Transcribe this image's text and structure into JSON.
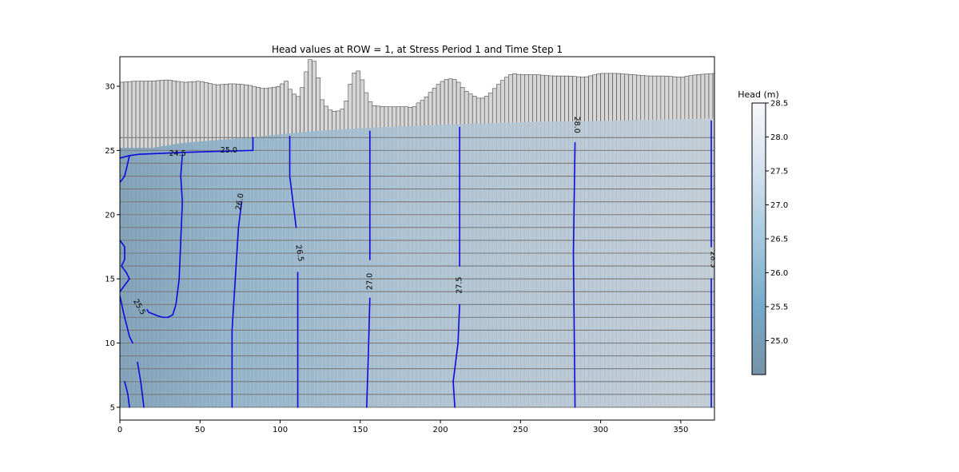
{
  "chart_data": {
    "type": "cross-section-contour",
    "title": "Head values at ROW = 1, at Stress Period 1 and Time Step 1",
    "xlabel": "",
    "ylabel": "",
    "xlim": [
      0,
      371
    ],
    "ylim": [
      4.0,
      32.3
    ],
    "x_ticks": [
      0,
      50,
      100,
      150,
      200,
      250,
      300,
      350
    ],
    "y_ticks": [
      5,
      10,
      15,
      20,
      25,
      30
    ],
    "grid": false,
    "colorbar": {
      "title": "Head (m)",
      "range": [
        24.5,
        28.5
      ],
      "ticks": [
        25.0,
        25.5,
        26.0,
        26.5,
        27.0,
        27.5,
        28.0,
        28.5
      ],
      "colormap": [
        "#7693a7",
        "#76a9c9",
        "#a4c9df",
        "#d5e1ee",
        "#f7f7fb"
      ]
    },
    "model_grid": {
      "column_width": 2.5,
      "layer_bottoms": [
        5,
        6,
        7,
        8,
        9,
        10,
        11,
        12,
        13,
        14,
        15,
        16,
        17,
        18,
        19,
        20,
        21,
        22,
        23,
        24,
        25,
        26
      ],
      "top_surface": [
        [
          0,
          30.3
        ],
        [
          10,
          30.4
        ],
        [
          20,
          30.4
        ],
        [
          30,
          30.5
        ],
        [
          40,
          30.3
        ],
        [
          50,
          30.4
        ],
        [
          60,
          30.1
        ],
        [
          70,
          30.2
        ],
        [
          80,
          30.1
        ],
        [
          90,
          29.8
        ],
        [
          95,
          29.9
        ],
        [
          100,
          30.0
        ],
        [
          102,
          30.3
        ],
        [
          103,
          30.6
        ],
        [
          106,
          29.8
        ],
        [
          110,
          29.2
        ],
        [
          112,
          29.2
        ],
        [
          114,
          30.0
        ],
        [
          116,
          31.0
        ],
        [
          118,
          32.0
        ],
        [
          120,
          32.2
        ],
        [
          122,
          31.8
        ],
        [
          124,
          30.5
        ],
        [
          126,
          29.0
        ],
        [
          130,
          28.2
        ],
        [
          135,
          28.0
        ],
        [
          140,
          28.3
        ],
        [
          142,
          29.2
        ],
        [
          144,
          30.3
        ],
        [
          146,
          31.0
        ],
        [
          148,
          31.3
        ],
        [
          150,
          31.0
        ],
        [
          152,
          30.2
        ],
        [
          155,
          29.0
        ],
        [
          158,
          28.5
        ],
        [
          165,
          28.4
        ],
        [
          180,
          28.4
        ],
        [
          183,
          28.3
        ],
        [
          185,
          28.6
        ],
        [
          190,
          29.0
        ],
        [
          195,
          29.7
        ],
        [
          200,
          30.3
        ],
        [
          205,
          30.6
        ],
        [
          210,
          30.5
        ],
        [
          212,
          30.2
        ],
        [
          215,
          29.7
        ],
        [
          220,
          29.3
        ],
        [
          225,
          29.0
        ],
        [
          230,
          29.3
        ],
        [
          235,
          30.0
        ],
        [
          240,
          30.6
        ],
        [
          245,
          31.0
        ],
        [
          250,
          30.9
        ],
        [
          260,
          30.9
        ],
        [
          270,
          30.8
        ],
        [
          280,
          30.8
        ],
        [
          290,
          30.7
        ],
        [
          300,
          31.0
        ],
        [
          310,
          31.0
        ],
        [
          320,
          30.9
        ],
        [
          330,
          30.8
        ],
        [
          340,
          30.8
        ],
        [
          350,
          30.7
        ],
        [
          360,
          30.9
        ],
        [
          371,
          31.0
        ]
      ]
    },
    "water_table": [
      [
        0,
        25.2
      ],
      [
        20,
        25.2
      ],
      [
        40,
        25.6
      ],
      [
        80,
        26.0
      ],
      [
        120,
        26.5
      ],
      [
        160,
        26.8
      ],
      [
        200,
        27.0
      ],
      [
        250,
        27.2
      ],
      [
        300,
        27.3
      ],
      [
        371,
        27.5
      ]
    ],
    "contours": [
      {
        "level": "24.5",
        "label": "24.5",
        "label_xy": [
          36,
          24.75
        ],
        "label_rot": 0,
        "paths": [
          [
            [
              0,
              24.4
            ],
            [
              6,
              24.6
            ],
            [
              12,
              24.7
            ],
            [
              40,
              24.85
            ],
            [
              82,
              25.0
            ]
          ],
          [
            [
              0,
              22.5
            ],
            [
              3,
              23.0
            ],
            [
              6,
              24.6
            ]
          ]
        ]
      },
      {
        "level": "25.0",
        "label": "25.0",
        "label_xy": [
          68,
          25.0
        ],
        "label_rot": 0,
        "paths": [
          [
            [
              82,
              25.0
            ],
            [
              83,
              25.0
            ],
            [
              83,
              26.0
            ]
          ],
          [
            [
              39,
              24.7
            ],
            [
              38,
              23.0
            ],
            [
              39,
              21.0
            ],
            [
              38,
              18.0
            ],
            [
              37,
              15.0
            ],
            [
              35,
              13.0
            ],
            [
              33,
              12.2
            ],
            [
              30,
              12.0
            ],
            [
              27,
              12.0
            ],
            [
              24,
              12.1
            ],
            [
              18,
              12.4
            ],
            [
              17,
              12.6
            ]
          ]
        ]
      },
      {
        "level": "25.5",
        "label": "25.5",
        "label_xy": [
          12,
          12.8
        ],
        "label_rot": 60,
        "paths": [
          [
            [
              0,
              18.0
            ],
            [
              3,
              17.5
            ],
            [
              3,
              16.5
            ],
            [
              1,
              16.0
            ],
            [
              4,
              15.5
            ],
            [
              6,
              15.0
            ],
            [
              0,
              14.0
            ]
          ],
          [
            [
              0,
              13.7
            ],
            [
              2,
              12.5
            ],
            [
              4,
              11.5
            ],
            [
              6,
              10.5
            ],
            [
              8,
              10.0
            ]
          ]
        ]
      },
      {
        "level": "26.0",
        "label": "26.0",
        "label_xy": [
          75,
          21.0
        ],
        "label_rot": -80,
        "paths": [
          [
            [
              70,
              5.0
            ],
            [
              70,
              11.0
            ],
            [
              72,
              15.0
            ],
            [
              74,
              19.0
            ],
            [
              76,
              21.0
            ]
          ],
          [
            [
              11,
              8.5
            ],
            [
              13,
              7.0
            ],
            [
              15,
              5.0
            ]
          ]
        ]
      },
      {
        "level": "26.5",
        "label": "26.5",
        "label_xy": [
          112,
          17.0
        ],
        "label_rot": 80,
        "paths": [
          [
            [
              106,
              26.1
            ],
            [
              106,
              23.0
            ],
            [
              108,
              21.0
            ],
            [
              110,
              19.0
            ]
          ],
          [
            [
              111,
              15.5
            ],
            [
              111,
              12.0
            ],
            [
              111,
              5.0
            ]
          ],
          [
            [
              3,
              7.0
            ],
            [
              5,
              6.0
            ],
            [
              6,
              5.0
            ]
          ]
        ]
      },
      {
        "level": "27.0",
        "label": "27.0",
        "label_xy": [
          156,
          14.8
        ],
        "label_rot": -90,
        "paths": [
          [
            [
              156,
              26.5
            ],
            [
              156,
              16.5
            ]
          ],
          [
            [
              156,
              13.5
            ],
            [
              155,
              9.0
            ],
            [
              154,
              5.0
            ]
          ]
        ]
      },
      {
        "level": "27.5",
        "label": "27.5",
        "label_xy": [
          212,
          14.5
        ],
        "label_rot": -90,
        "paths": [
          [
            [
              212,
              26.8
            ],
            [
              212,
              16.0
            ]
          ],
          [
            [
              212,
              13.0
            ],
            [
              211,
              10.0
            ],
            [
              208,
              7.0
            ],
            [
              209,
              5.0
            ]
          ]
        ]
      },
      {
        "level": "28.0",
        "label": "28.0",
        "label_xy": [
          285,
          27.0
        ],
        "label_rot": 90,
        "paths": [
          [
            [
              284,
              25.6
            ],
            [
              283,
              17.0
            ],
            [
              284,
              5.0
            ]
          ]
        ]
      },
      {
        "level": "28.5",
        "label": "28.5",
        "label_xy": [
          370,
          16.5
        ],
        "label_rot": 90,
        "paths": [
          [
            [
              369,
              27.3
            ],
            [
              369,
              17.5
            ]
          ],
          [
            [
              369,
              15.0
            ],
            [
              369,
              5.0
            ]
          ]
        ]
      }
    ],
    "colors": {
      "contour_line": "#0a0adf",
      "grid_line": "#7a7a7a",
      "cell_line": "#4a4a4a",
      "cell_fill": "#d6d6d6",
      "water_fill": "#6d9fc2"
    }
  }
}
